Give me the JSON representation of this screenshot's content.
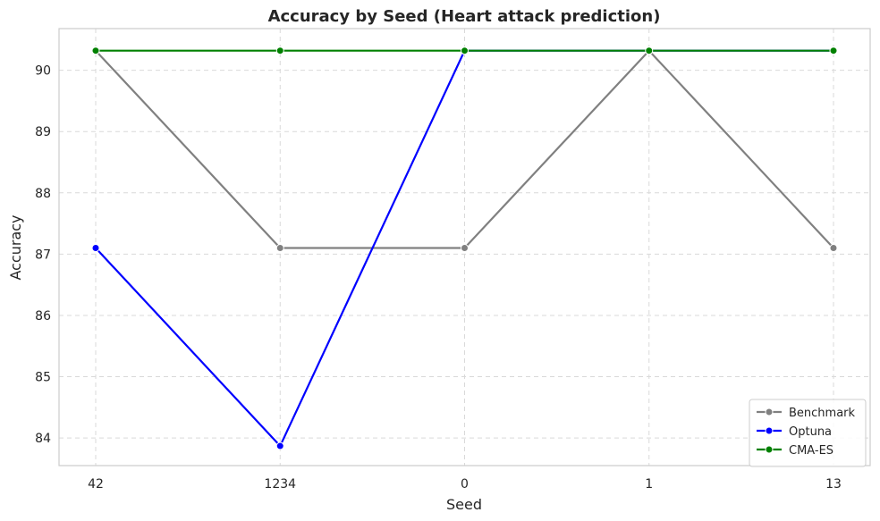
{
  "chart_data": {
    "type": "line",
    "title": "Accuracy by Seed (Heart attack prediction)",
    "xlabel": "Seed",
    "ylabel": "Accuracy",
    "categories": [
      "42",
      "1234",
      "0",
      "1",
      "13"
    ],
    "ylim": [
      83.55,
      90.68
    ],
    "yticks": [
      84,
      85,
      86,
      87,
      88,
      89,
      90
    ],
    "grid": true,
    "legend_position": "lower-right",
    "series": [
      {
        "name": "Benchmark",
        "color": "#808080",
        "values": [
          90.32,
          87.1,
          87.1,
          90.32,
          87.1
        ]
      },
      {
        "name": "Optuna",
        "color": "#0000ff",
        "values": [
          87.1,
          83.87,
          90.32,
          90.32,
          90.32
        ]
      },
      {
        "name": "CMA-ES",
        "color": "#008000",
        "values": [
          90.32,
          90.32,
          90.32,
          90.32,
          90.32
        ]
      }
    ]
  }
}
